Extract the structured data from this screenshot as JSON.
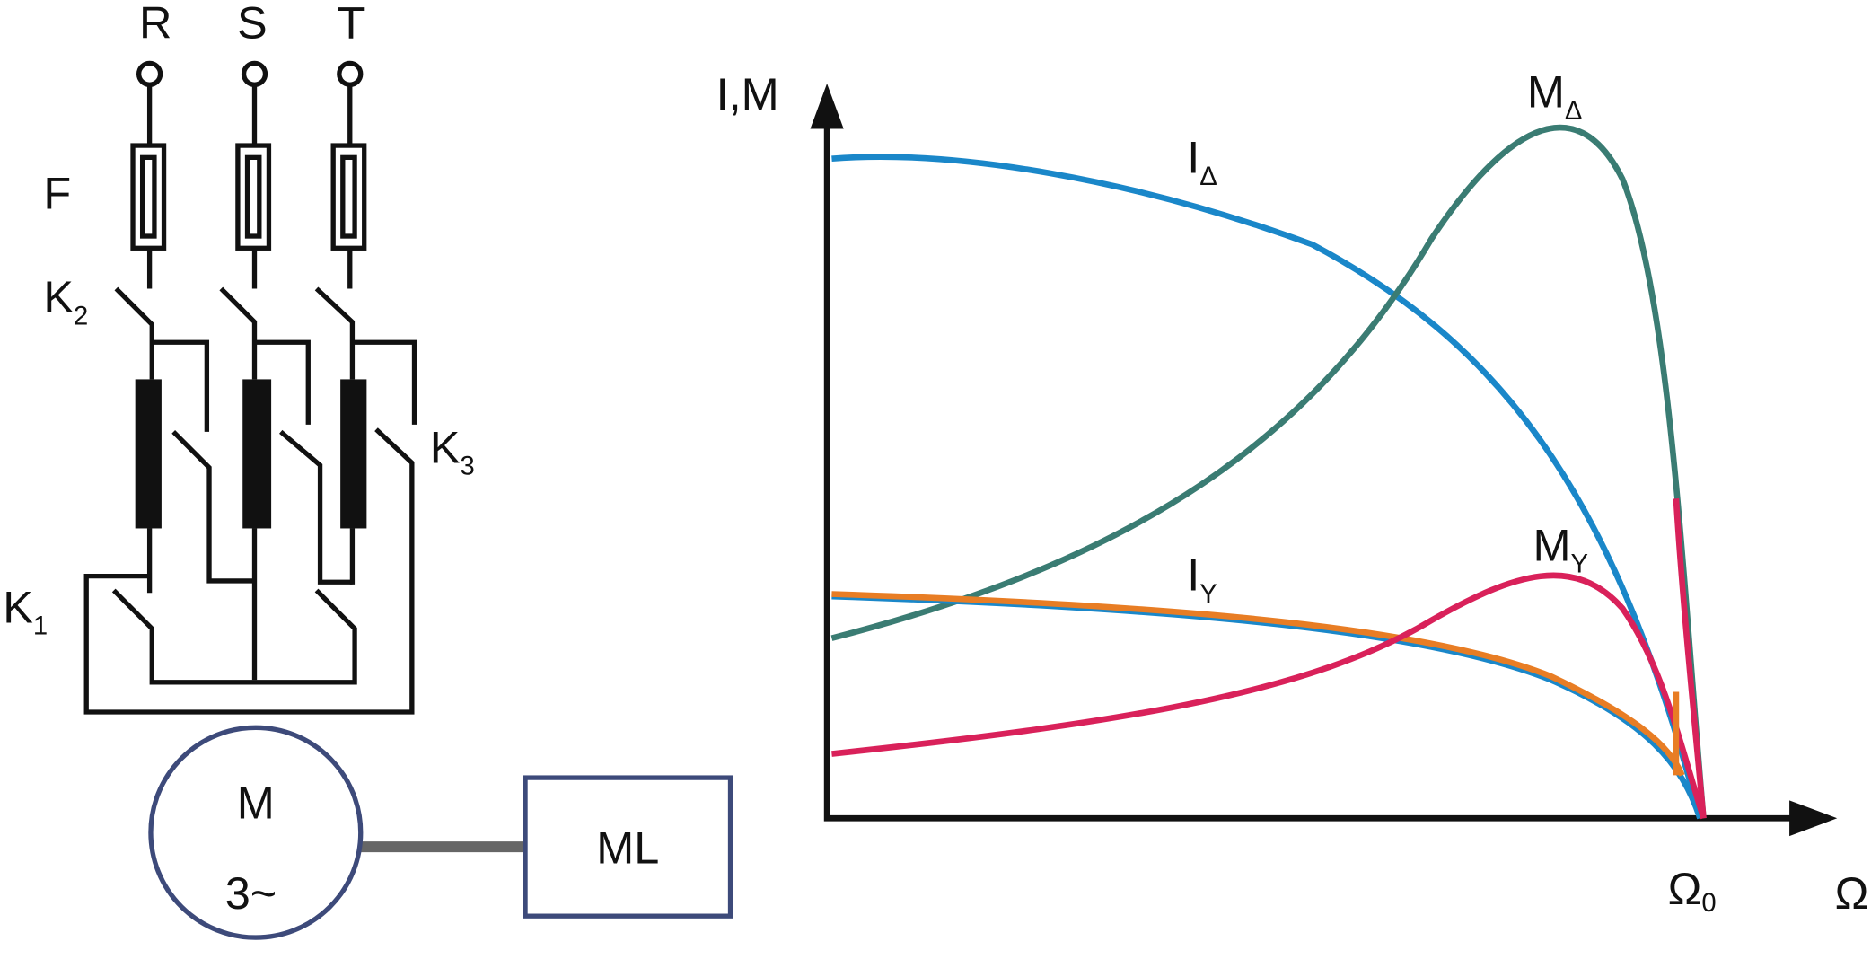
{
  "circuit": {
    "phases": [
      "R",
      "S",
      "T"
    ],
    "fuse_label": "F",
    "contactors": [
      {
        "letter": "K",
        "sub": "1"
      },
      {
        "letter": "K",
        "sub": "2"
      },
      {
        "letter": "K",
        "sub": "3"
      }
    ],
    "motor": {
      "line1": "M",
      "line2": "3~"
    },
    "load": "ML"
  },
  "graph": {
    "y_axis": "I,M",
    "x_axis": "Ω",
    "sync_speed": {
      "letter": "Ω",
      "sub": "0"
    },
    "curves": [
      {
        "letter": "I",
        "sub": "Δ"
      },
      {
        "letter": "M",
        "sub": "Δ"
      },
      {
        "letter": "I",
        "sub": "Y"
      },
      {
        "letter": "M",
        "sub": "Y"
      }
    ]
  }
}
